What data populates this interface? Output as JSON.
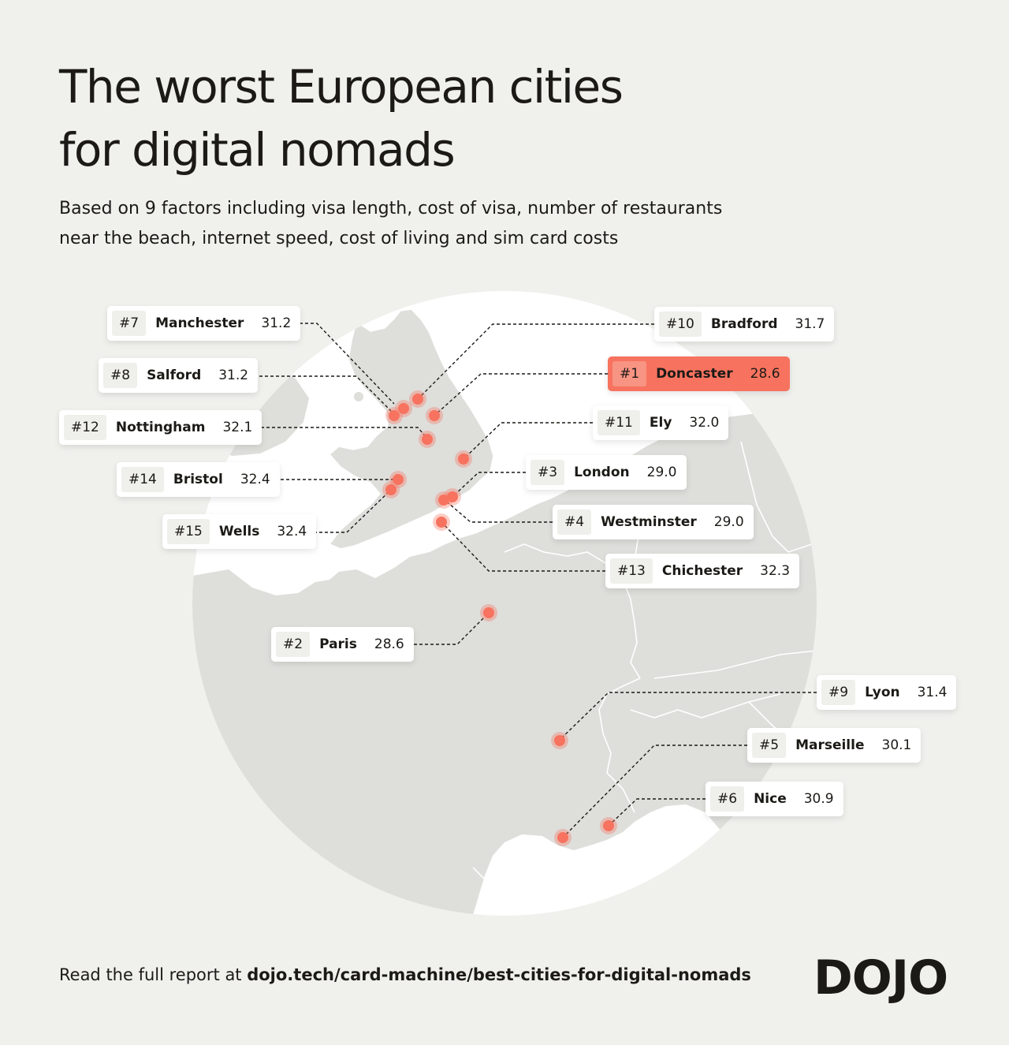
{
  "title_line1": "The worst European cities",
  "title_line2": "for digital nomads",
  "subtitle_line1": "Based on 9 factors including visa length, cost of visa, number of restaurants",
  "subtitle_line2": "near the beach, internet speed, cost of living and sim card costs",
  "colors": {
    "background": "#f0f0ed",
    "land": "#dededb",
    "globe": "#ffffff",
    "marker": "#f7735f",
    "highlight": "#f7735f"
  },
  "cities": [
    {
      "rank": "#1",
      "city": "Doncaster",
      "score": "28.6",
      "highlight": true
    },
    {
      "rank": "#2",
      "city": "Paris",
      "score": "28.6"
    },
    {
      "rank": "#3",
      "city": "London",
      "score": "29.0"
    },
    {
      "rank": "#4",
      "city": "Westminster",
      "score": "29.0"
    },
    {
      "rank": "#5",
      "city": "Marseille",
      "score": "30.1"
    },
    {
      "rank": "#6",
      "city": "Nice",
      "score": "30.9"
    },
    {
      "rank": "#7",
      "city": "Manchester",
      "score": "31.2"
    },
    {
      "rank": "#8",
      "city": "Salford",
      "score": "31.2"
    },
    {
      "rank": "#9",
      "city": "Lyon",
      "score": "31.4"
    },
    {
      "rank": "#10",
      "city": "Bradford",
      "score": "31.7"
    },
    {
      "rank": "#11",
      "city": "Ely",
      "score": "32.0"
    },
    {
      "rank": "#12",
      "city": "Nottingham",
      "score": "32.1"
    },
    {
      "rank": "#13",
      "city": "Chichester",
      "score": "32.3"
    },
    {
      "rank": "#14",
      "city": "Bristol",
      "score": "32.4"
    },
    {
      "rank": "#15",
      "city": "Wells",
      "score": "32.4"
    }
  ],
  "footer_prefix": "Read the full report at ",
  "footer_url": "dojo.tech/card-machine/best-cities-for-digital-nomads",
  "logo": "DOJO"
}
